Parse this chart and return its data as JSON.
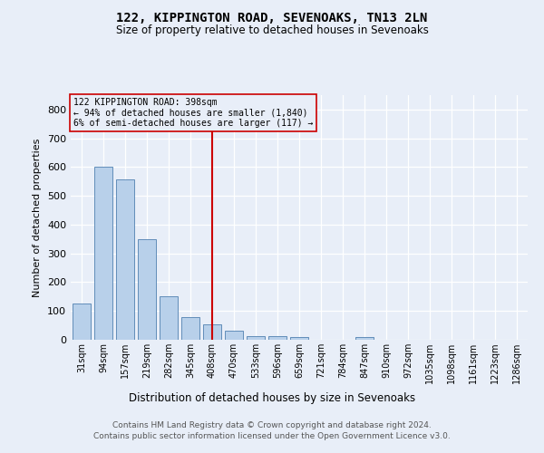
{
  "title": "122, KIPPINGTON ROAD, SEVENOAKS, TN13 2LN",
  "subtitle": "Size of property relative to detached houses in Sevenoaks",
  "xlabel": "Distribution of detached houses by size in Sevenoaks",
  "ylabel": "Number of detached properties",
  "bar_labels": [
    "31sqm",
    "94sqm",
    "157sqm",
    "219sqm",
    "282sqm",
    "345sqm",
    "408sqm",
    "470sqm",
    "533sqm",
    "596sqm",
    "659sqm",
    "721sqm",
    "784sqm",
    "847sqm",
    "910sqm",
    "972sqm",
    "1035sqm",
    "1098sqm",
    "1161sqm",
    "1223sqm",
    "1286sqm"
  ],
  "bar_values": [
    125,
    600,
    557,
    348,
    150,
    78,
    52,
    30,
    13,
    13,
    8,
    0,
    0,
    8,
    0,
    0,
    0,
    0,
    0,
    0,
    0
  ],
  "bar_color": "#b8d0ea",
  "bar_edge_color": "#5080b0",
  "highlight_index": 6,
  "highlight_color": "#cc0000",
  "annotation_line1": "122 KIPPINGTON ROAD: 398sqm",
  "annotation_line2": "← 94% of detached houses are smaller (1,840)",
  "annotation_line3": "6% of semi-detached houses are larger (117) →",
  "ylim_max": 850,
  "yticks": [
    0,
    100,
    200,
    300,
    400,
    500,
    600,
    700,
    800
  ],
  "background_color": "#e8eef8",
  "grid_color": "#ffffff",
  "footer_line1": "Contains HM Land Registry data © Crown copyright and database right 2024.",
  "footer_line2": "Contains public sector information licensed under the Open Government Licence v3.0."
}
